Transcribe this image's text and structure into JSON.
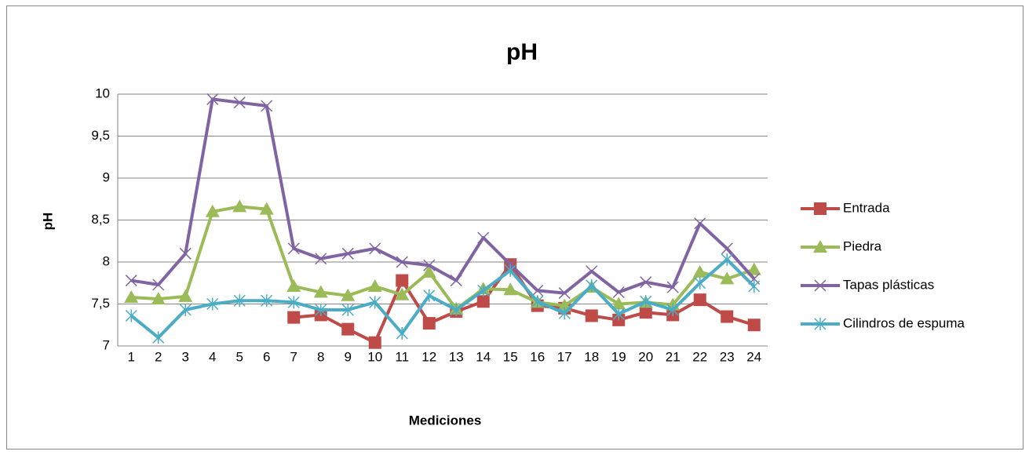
{
  "chart_data": {
    "type": "line",
    "title": "pH",
    "x_label": "Mediciones",
    "y_label": "pH",
    "categories": [
      "1",
      "2",
      "3",
      "4",
      "5",
      "6",
      "7",
      "8",
      "9",
      "10",
      "11",
      "12",
      "13",
      "14",
      "15",
      "16",
      "17",
      "18",
      "19",
      "20",
      "21",
      "22",
      "23",
      "24"
    ],
    "ylim": [
      7,
      10
    ],
    "yticks": [
      7,
      {
        "value": 7.5,
        "label": "7,5"
      },
      8,
      {
        "value": 8.5,
        "label": "8,5"
      },
      9,
      {
        "value": 9.5,
        "label": "9,5"
      },
      10
    ],
    "grid": true,
    "legend": "right",
    "series": [
      {
        "name": "Entrada",
        "color": "#be4b48",
        "marker": "square",
        "values": [
          null,
          null,
          null,
          null,
          null,
          null,
          7.34,
          7.37,
          7.2,
          7.04,
          7.78,
          7.27,
          7.41,
          7.53,
          7.97,
          7.48,
          7.45,
          7.36,
          7.31,
          7.4,
          7.37,
          7.55,
          7.35,
          7.25
        ]
      },
      {
        "name": "Piedra",
        "color": "#9bbb59",
        "marker": "triangle",
        "values": [
          7.58,
          7.56,
          7.59,
          8.6,
          8.66,
          8.63,
          7.71,
          7.64,
          7.6,
          7.71,
          7.61,
          7.88,
          7.44,
          7.68,
          7.67,
          7.52,
          7.48,
          7.7,
          7.5,
          7.52,
          7.49,
          7.88,
          7.8,
          7.91
        ]
      },
      {
        "name": "Tapas plásticas",
        "color": "#8064a2",
        "marker": "x",
        "values": [
          7.78,
          7.73,
          8.1,
          9.94,
          9.9,
          9.86,
          8.16,
          8.04,
          8.1,
          8.16,
          8.0,
          7.96,
          7.78,
          8.29,
          7.97,
          7.66,
          7.63,
          7.89,
          7.64,
          7.76,
          7.7,
          8.46,
          8.16,
          7.8
        ]
      },
      {
        "name": "Cilindros de espuma",
        "color": "#4bacc6",
        "marker": "star",
        "values": [
          7.36,
          7.1,
          7.43,
          7.5,
          7.54,
          7.54,
          7.52,
          7.43,
          7.43,
          7.52,
          7.15,
          7.6,
          7.43,
          7.66,
          7.9,
          7.53,
          7.39,
          7.72,
          7.38,
          7.53,
          7.43,
          7.75,
          8.03,
          7.71
        ]
      }
    ]
  }
}
